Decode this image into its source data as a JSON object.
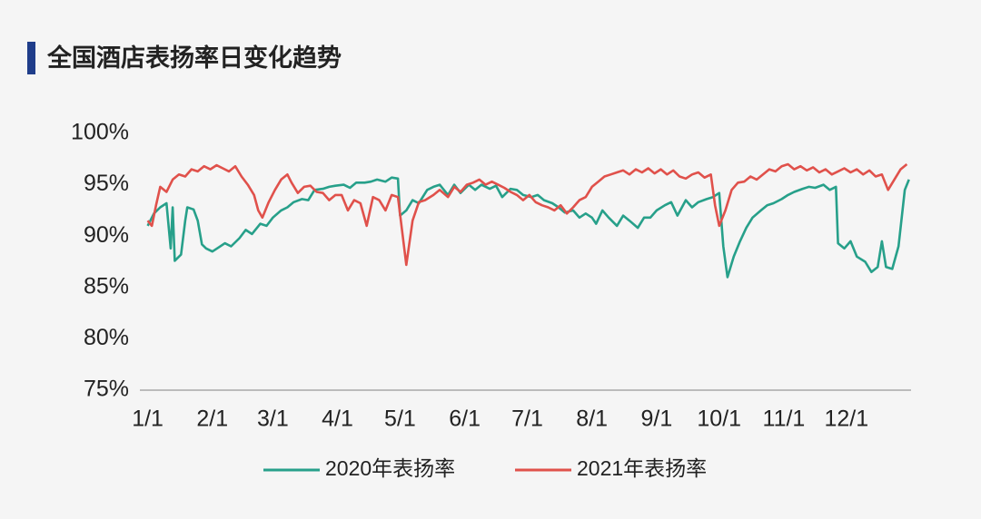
{
  "chart_data": {
    "type": "line",
    "title": "全国酒店表扬率日变化趋势",
    "xlim": [
      -2,
      366
    ],
    "xticks": [
      {
        "value": 0,
        "label": "1/1"
      },
      {
        "value": 31,
        "label": "2/1"
      },
      {
        "value": 60,
        "label": "3/1"
      },
      {
        "value": 91,
        "label": "4/1"
      },
      {
        "value": 121,
        "label": "5/1"
      },
      {
        "value": 152,
        "label": "6/1"
      },
      {
        "value": 182,
        "label": "7/1"
      },
      {
        "value": 213,
        "label": "8/1"
      },
      {
        "value": 244,
        "label": "9/1"
      },
      {
        "value": 274,
        "label": "10/1"
      },
      {
        "value": 305,
        "label": "11/1"
      },
      {
        "value": 335,
        "label": "12/1"
      }
    ],
    "ylim": [
      75,
      100
    ],
    "yticks": [
      {
        "value": 75,
        "label": "75%"
      },
      {
        "value": 80,
        "label": "80%"
      },
      {
        "value": 85,
        "label": "85%"
      },
      {
        "value": 90,
        "label": "90%"
      },
      {
        "value": 95,
        "label": "95%"
      },
      {
        "value": 100,
        "label": "100%"
      }
    ],
    "grid": false,
    "legend": "bottom",
    "series": [
      {
        "name": "2020年表扬率",
        "color": "#27a08a",
        "x": [
          0,
          3,
          6,
          9,
          11,
          12,
          13,
          16,
          18,
          19,
          22,
          24,
          26,
          28,
          31,
          34,
          37,
          40,
          44,
          47,
          50,
          54,
          57,
          60,
          64,
          67,
          70,
          74,
          77,
          80,
          84,
          87,
          90,
          94,
          97,
          100,
          104,
          107,
          110,
          114,
          117,
          120,
          121,
          124,
          127,
          130,
          134,
          137,
          140,
          144,
          147,
          150,
          154,
          157,
          160,
          164,
          167,
          170,
          174,
          177,
          180,
          184,
          187,
          190,
          194,
          197,
          200,
          204,
          207,
          210,
          213,
          215,
          218,
          221,
          225,
          228,
          231,
          235,
          238,
          241,
          244,
          248,
          251,
          254,
          258,
          261,
          264,
          268,
          271,
          274,
          276,
          278,
          281,
          284,
          287,
          290,
          294,
          297,
          300,
          304,
          307,
          310,
          314,
          317,
          320,
          324,
          327,
          330,
          331,
          334,
          337,
          340,
          344,
          347,
          350,
          352,
          354,
          357,
          360,
          363,
          365
        ],
        "values": [
          91.0,
          92.2,
          92.8,
          93.2,
          88.8,
          92.8,
          87.6,
          88.2,
          91.5,
          92.8,
          92.6,
          91.5,
          89.2,
          88.8,
          88.5,
          88.9,
          89.3,
          89.0,
          89.8,
          90.6,
          90.2,
          91.2,
          91.0,
          91.8,
          92.5,
          92.8,
          93.3,
          93.6,
          93.5,
          94.5,
          94.6,
          94.8,
          94.9,
          95.0,
          94.7,
          95.2,
          95.2,
          95.3,
          95.5,
          95.3,
          95.7,
          95.6,
          92.0,
          92.5,
          93.5,
          93.2,
          94.5,
          94.8,
          95.0,
          94.0,
          95.0,
          94.2,
          95.0,
          94.5,
          95.0,
          94.6,
          94.9,
          93.8,
          94.6,
          94.5,
          94.0,
          93.8,
          94.0,
          93.5,
          93.2,
          92.8,
          92.3,
          92.5,
          91.8,
          92.2,
          91.8,
          91.2,
          92.5,
          91.8,
          91.0,
          92.0,
          91.5,
          90.8,
          91.8,
          91.8,
          92.5,
          93.0,
          93.3,
          92.0,
          93.5,
          92.8,
          93.3,
          93.6,
          93.8,
          94.2,
          89.0,
          86.0,
          88.0,
          89.5,
          90.8,
          91.8,
          92.5,
          93.0,
          93.2,
          93.6,
          94.0,
          94.3,
          94.6,
          94.8,
          94.7,
          95.0,
          94.5,
          94.8,
          89.3,
          88.8,
          89.5,
          88.0,
          87.5,
          86.5,
          87.0,
          89.5,
          87.0,
          86.8,
          89.0,
          94.5,
          95.5
        ]
      },
      {
        "name": "2021年表扬率",
        "color": "#e0514b",
        "x": [
          0,
          2,
          4,
          6,
          9,
          12,
          15,
          18,
          21,
          24,
          27,
          30,
          33,
          36,
          39,
          42,
          45,
          48,
          51,
          53,
          55,
          58,
          61,
          64,
          67,
          69,
          72,
          75,
          78,
          81,
          84,
          87,
          90,
          93,
          96,
          99,
          102,
          105,
          108,
          111,
          114,
          117,
          120,
          122,
          124,
          127,
          130,
          133,
          137,
          140,
          144,
          147,
          150,
          153,
          156,
          159,
          162,
          165,
          168,
          171,
          174,
          177,
          180,
          183,
          186,
          189,
          192,
          195,
          198,
          201,
          204,
          207,
          210,
          213,
          216,
          219,
          222,
          225,
          228,
          231,
          234,
          237,
          240,
          243,
          246,
          249,
          252,
          255,
          258,
          261,
          264,
          267,
          270,
          272,
          274,
          277,
          280,
          283,
          286,
          289,
          292,
          295,
          298,
          301,
          304,
          307,
          310,
          313,
          316,
          319,
          322,
          325,
          328,
          331,
          334,
          337,
          340,
          343,
          346,
          349,
          352,
          355,
          358,
          361,
          364
        ],
        "values": [
          91.5,
          91.0,
          93.0,
          94.8,
          94.3,
          95.5,
          96.0,
          95.8,
          96.5,
          96.3,
          96.8,
          96.5,
          96.9,
          96.6,
          96.3,
          96.8,
          95.8,
          95.0,
          94.0,
          92.5,
          91.8,
          93.3,
          94.5,
          95.5,
          96.0,
          95.2,
          94.2,
          94.8,
          94.9,
          94.3,
          94.2,
          93.5,
          94.0,
          94.0,
          92.5,
          93.5,
          93.2,
          91.0,
          93.8,
          93.5,
          92.5,
          94.0,
          93.8,
          90.5,
          87.2,
          91.5,
          93.3,
          93.5,
          94.0,
          94.5,
          93.8,
          94.8,
          94.3,
          95.0,
          95.2,
          95.5,
          95.0,
          95.3,
          95.0,
          94.7,
          94.3,
          94.0,
          93.5,
          94.0,
          93.3,
          93.0,
          92.8,
          92.5,
          93.0,
          92.2,
          92.8,
          93.5,
          93.8,
          94.8,
          95.3,
          95.8,
          96.0,
          96.2,
          96.4,
          96.0,
          96.5,
          96.2,
          96.6,
          96.1,
          96.5,
          96.0,
          96.4,
          95.8,
          95.6,
          96.0,
          96.2,
          95.7,
          96.0,
          93.0,
          91.0,
          92.5,
          94.5,
          95.2,
          95.3,
          95.8,
          95.5,
          96.0,
          96.5,
          96.3,
          96.8,
          97.0,
          96.5,
          96.8,
          96.4,
          96.7,
          96.2,
          96.5,
          96.0,
          96.3,
          96.6,
          96.2,
          96.5,
          96.0,
          96.4,
          95.8,
          96.0,
          94.5,
          95.5,
          96.5,
          97.0
        ]
      }
    ]
  }
}
